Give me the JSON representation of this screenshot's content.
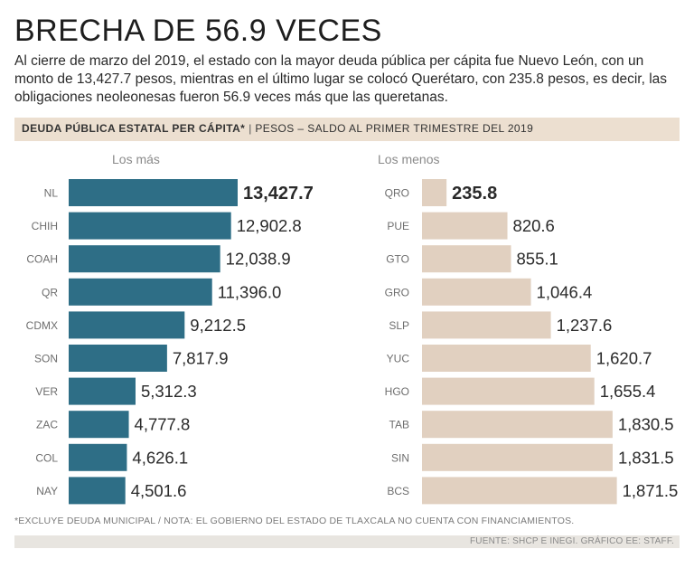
{
  "title": "BRECHA DE 56.9 VECES",
  "subtitle": "Al cierre de marzo del 2019, el estado con la mayor deuda pública per cápita fue Nuevo León, con un monto de 13,427.7 pesos, mientras en el último lugar se colocó Querétaro, con 235.8 pesos, es decir, las obligaciones neoleonesas fueron 56.9 veces más que las queretanas.",
  "band": {
    "bold": "DEUDA PÚBLICA ESTATAL PER CÁPITA*",
    "separator": "|",
    "rest": "PESOS – SALDO AL PRIMER TRIMESTRE DEL 2019"
  },
  "footnote": "*EXCLUYE DEUDA MUNICIPAL / NOTA: EL GOBIERNO DEL ESTADO DE TLAXCALA NO CUENTA CON FINANCIAMIENTOS.",
  "source": "FUENTE: SHCP E INEGI. GRÁFICO EE: STAFF.",
  "colors": {
    "left_bar": "#2e6e86",
    "right_bar": "#e1d0c0",
    "band": "#ecdfd0"
  },
  "chart_data": [
    {
      "type": "bar",
      "orientation": "horizontal",
      "title": "Los más",
      "categories": [
        "NL",
        "CHIH",
        "COAH",
        "QR",
        "CDMX",
        "SON",
        "VER",
        "ZAC",
        "COL",
        "NAY"
      ],
      "values": [
        13427.7,
        12902.8,
        12038.9,
        11396.0,
        9212.5,
        7817.9,
        5312.3,
        4777.8,
        4626.1,
        4501.6
      ],
      "labels": [
        "13,427.7",
        "12,902.8",
        "12,038.9",
        "11,396.0",
        "9,212.5",
        "7,817.9",
        "5,312.3",
        "4,777.8",
        "4,626.1",
        "4,501.6"
      ],
      "highlight_index": 0,
      "xlim": [
        0,
        13427.7
      ]
    },
    {
      "type": "bar",
      "orientation": "horizontal",
      "title": "Los menos",
      "categories": [
        "QRO",
        "PUE",
        "GTO",
        "GRO",
        "SLP",
        "YUC",
        "HGO",
        "TAB",
        "SIN",
        "BCS"
      ],
      "values": [
        235.8,
        820.6,
        855.1,
        1046.4,
        1237.6,
        1620.7,
        1655.4,
        1830.5,
        1831.5,
        1871.5
      ],
      "labels": [
        "235.8",
        "820.6",
        "855.1",
        "1,046.4",
        "1,237.6",
        "1,620.7",
        "1,655.4",
        "1,830.5",
        "1,831.5",
        "1,871.5"
      ],
      "highlight_index": 0,
      "xlim": [
        0,
        2170
      ]
    }
  ]
}
